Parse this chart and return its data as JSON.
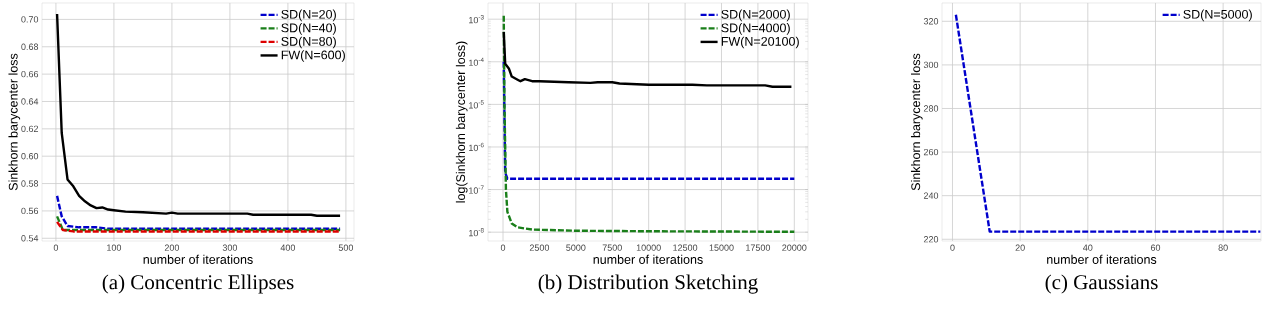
{
  "chart_data": [
    {
      "type": "line",
      "title": "(a) Concentric Ellipses",
      "xlabel": "number of iterations",
      "ylabel": "Sinkhorn barycenter loss",
      "xlim": [
        -24,
        514
      ],
      "ylim": [
        0.538,
        0.712
      ],
      "xticks": [
        0,
        100,
        200,
        300,
        400,
        500
      ],
      "yticks": [
        {
          "value": 0.54,
          "label": "0.54"
        },
        {
          "value": 0.56,
          "label": "0.56"
        },
        {
          "value": 0.58,
          "label": "0.58"
        },
        {
          "value": 0.6,
          "label": "0.60"
        },
        {
          "value": 0.62,
          "label": "0.62"
        },
        {
          "value": 0.64,
          "label": "0.64"
        },
        {
          "value": 0.66,
          "label": "0.66"
        },
        {
          "value": 0.68,
          "label": "0.68"
        },
        {
          "value": 0.7,
          "label": "0.70"
        }
      ],
      "grid": true,
      "legend": "top right",
      "series": [
        {
          "name": "SD(N=20)",
          "color": "#0000cc",
          "line_style": "dashed",
          "x": [
            2,
            10,
            20,
            40,
            70,
            90,
            490
          ],
          "values": [
            0.571,
            0.556,
            0.549,
            0.548,
            0.548,
            0.547,
            0.547
          ]
        },
        {
          "name": "SD(N=40)",
          "color": "#1a7f1a",
          "line_style": "dashed",
          "x": [
            2,
            12,
            490
          ],
          "values": [
            0.556,
            0.546,
            0.546
          ]
        },
        {
          "name": "SD(N=80)",
          "color": "#dd0000",
          "line_style": "dashed",
          "x": [
            2,
            12,
            30,
            490
          ],
          "values": [
            0.552,
            0.546,
            0.545,
            0.545
          ]
        },
        {
          "name": "FW(N=600)",
          "color": "#000000",
          "line_style": "solid",
          "x": [
            2,
            10,
            20,
            30,
            40,
            50,
            60,
            70,
            80,
            90,
            100,
            120,
            150,
            190,
            200,
            210,
            330,
            340,
            440,
            450,
            490
          ],
          "values": [
            0.704,
            0.617,
            0.583,
            0.578,
            0.571,
            0.567,
            0.564,
            0.562,
            0.5625,
            0.561,
            0.5605,
            0.5595,
            0.559,
            0.558,
            0.5587,
            0.558,
            0.558,
            0.5572,
            0.5572,
            0.5565,
            0.5565
          ]
        }
      ]
    },
    {
      "type": "line",
      "title": "(b) Distribution Sketching",
      "xlabel": "number of iterations",
      "ylabel": "log(Sinkhorn barycenter loss)",
      "xlim": [
        -1030,
        20940
      ],
      "ylim": [
        6.2e-09,
        0.0024
      ],
      "log": "y",
      "xticks": [
        0,
        2500,
        5000,
        7500,
        10000,
        12500,
        15000,
        17500,
        20000
      ],
      "yticks": [
        {
          "value": 1e-08,
          "label": "10$^{-8}$"
        },
        {
          "value": 1e-07,
          "label": "10$^{-7}$"
        },
        {
          "value": 1e-06,
          "label": "10$^{-6}$"
        },
        {
          "value": 1e-05,
          "label": "10$^{-5}$"
        },
        {
          "value": 0.0001,
          "label": "10$^{-4}$"
        },
        {
          "value": 0.001,
          "label": "10$^{-3}$"
        }
      ],
      "grid": true,
      "legend": "top right",
      "series": [
        {
          "name": "SD(N=2000)",
          "color": "#0000cc",
          "line_style": "dashed",
          "x": [
            50,
            150,
            300,
            20000
          ],
          "values": [
            0.0001,
            2.5e-07,
            1.8e-07,
            1.8e-07
          ]
        },
        {
          "name": "SD(N=4000)",
          "color": "#1a7f1a",
          "line_style": "dashed",
          "x": [
            50,
            100,
            200,
            300,
            600,
            1000,
            2000,
            5000,
            10000,
            20000
          ],
          "values": [
            0.0012,
            1e-05,
            1e-07,
            3e-08,
            1.6e-08,
            1.3e-08,
            1.15e-08,
            1.08e-08,
            1.05e-08,
            1.02e-08
          ]
        },
        {
          "name": "FW(N=20100)",
          "color": "#000000",
          "line_style": "solid",
          "x": [
            50,
            150,
            400,
            600,
            1000,
            1200,
            1500,
            2000,
            2500,
            4500,
            6000,
            6500,
            7500,
            8000,
            10000,
            13000,
            14000,
            18000,
            18500,
            19800
          ],
          "values": [
            0.0005,
            9e-05,
            7e-05,
            4.5e-05,
            3.8e-05,
            3.5e-05,
            3.9e-05,
            3.5e-05,
            3.5e-05,
            3.3e-05,
            3.2e-05,
            3.3e-05,
            3.3e-05,
            3.1e-05,
            2.9e-05,
            2.9e-05,
            2.8e-05,
            2.8e-05,
            2.6e-05,
            2.6e-05
          ]
        }
      ]
    },
    {
      "type": "line",
      "title": "(c) Gaussians",
      "xlabel": "number of iterations",
      "ylabel": "Sinkhorn barycenter loss",
      "xlim": [
        -3.1,
        91.2
      ],
      "ylim": [
        219.2,
        328.4
      ],
      "xticks": [
        0,
        20,
        40,
        60,
        80
      ],
      "yticks": [
        220,
        240,
        260,
        280,
        300,
        320
      ],
      "grid": true,
      "legend": "top right",
      "series": [
        {
          "name": "SD(N=5000)",
          "color": "#0000cc",
          "line_style": "dashed",
          "x": [
            1,
            11,
            91
          ],
          "values": [
            323,
            223.5,
            223.5
          ]
        }
      ]
    }
  ]
}
